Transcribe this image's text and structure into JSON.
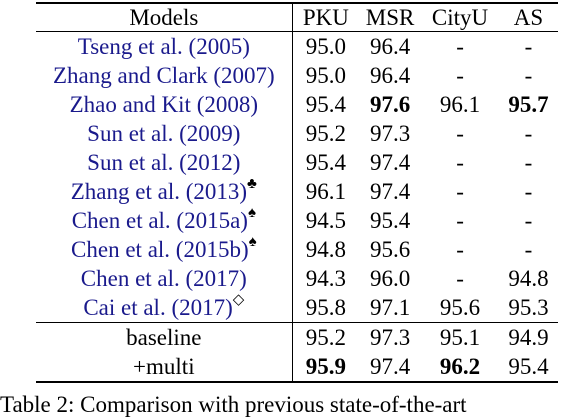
{
  "table": {
    "headers": [
      "Models",
      "PKU",
      "MSR",
      "CityU",
      "AS"
    ],
    "rows": [
      {
        "model": "Tseng et al. (2005)",
        "sup": "",
        "pku": "95.0",
        "msr": "96.4",
        "cityu": "-",
        "as": "-"
      },
      {
        "model": "Zhang and Clark (2007)",
        "sup": "",
        "pku": "95.0",
        "msr": "96.4",
        "cityu": "-",
        "as": "-"
      },
      {
        "model": "Zhao and Kit (2008)",
        "sup": "",
        "pku": "95.4",
        "msr": "97.6",
        "cityu": "96.1",
        "as": "95.7"
      },
      {
        "model": "Sun et al. (2009)",
        "sup": "",
        "pku": "95.2",
        "msr": "97.3",
        "cityu": "-",
        "as": "-"
      },
      {
        "model": "Sun et al. (2012)",
        "sup": "",
        "pku": "95.4",
        "msr": "97.4",
        "cityu": "-",
        "as": "-"
      },
      {
        "model": "Zhang et al. (2013)",
        "sup": "♣",
        "pku": "96.1",
        "msr": "97.4",
        "cityu": "-",
        "as": "-"
      },
      {
        "model": "Chen et al. (2015a)",
        "sup": "♠",
        "pku": "94.5",
        "msr": "95.4",
        "cityu": "-",
        "as": "-"
      },
      {
        "model": "Chen et al. (2015b)",
        "sup": "♠",
        "pku": "94.8",
        "msr": "95.6",
        "cityu": "-",
        "as": "-"
      },
      {
        "model": "Chen et al. (2017)",
        "sup": "",
        "pku": "94.3",
        "msr": "96.0",
        "cityu": "-",
        "as": "94.8"
      },
      {
        "model": "Cai et al. (2017)",
        "sup": "◇",
        "pku": "95.8",
        "msr": "97.1",
        "cityu": "95.6",
        "as": "95.3"
      }
    ],
    "ours": [
      {
        "model": "baseline",
        "pku": "95.2",
        "msr": "97.3",
        "cityu": "95.1",
        "as": "94.9"
      },
      {
        "model": "+multi",
        "pku": "95.9",
        "msr": "97.4",
        "cityu": "96.2",
        "as": "95.4"
      }
    ]
  },
  "caption": "Table 2: Comparison with previous state-of-the-art"
}
